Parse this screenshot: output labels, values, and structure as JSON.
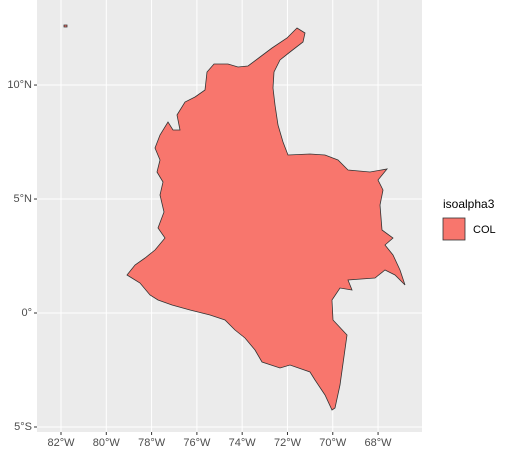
{
  "chart_data": {
    "type": "map",
    "xlim": [
      -83.06,
      -66.06
    ],
    "ylim": [
      -5.22,
      13.73
    ],
    "xticks": [
      {
        "value": -82,
        "label": "82°W"
      },
      {
        "value": -80,
        "label": "80°W"
      },
      {
        "value": -78,
        "label": "78°W"
      },
      {
        "value": -76,
        "label": "76°W"
      },
      {
        "value": -74,
        "label": "74°W"
      },
      {
        "value": -72,
        "label": "72°W"
      },
      {
        "value": -70,
        "label": "70°W"
      },
      {
        "value": -68,
        "label": "68°W"
      }
    ],
    "yticks": [
      {
        "value": -5,
        "label": "5°S"
      },
      {
        "value": 0,
        "label": "0°"
      },
      {
        "value": 5,
        "label": "5°N"
      },
      {
        "value": 10,
        "label": "10°N"
      }
    ],
    "grid": true,
    "legend_title": "isoalpha3",
    "series": [
      {
        "name": "COL",
        "color": "#F8766D"
      }
    ]
  }
}
